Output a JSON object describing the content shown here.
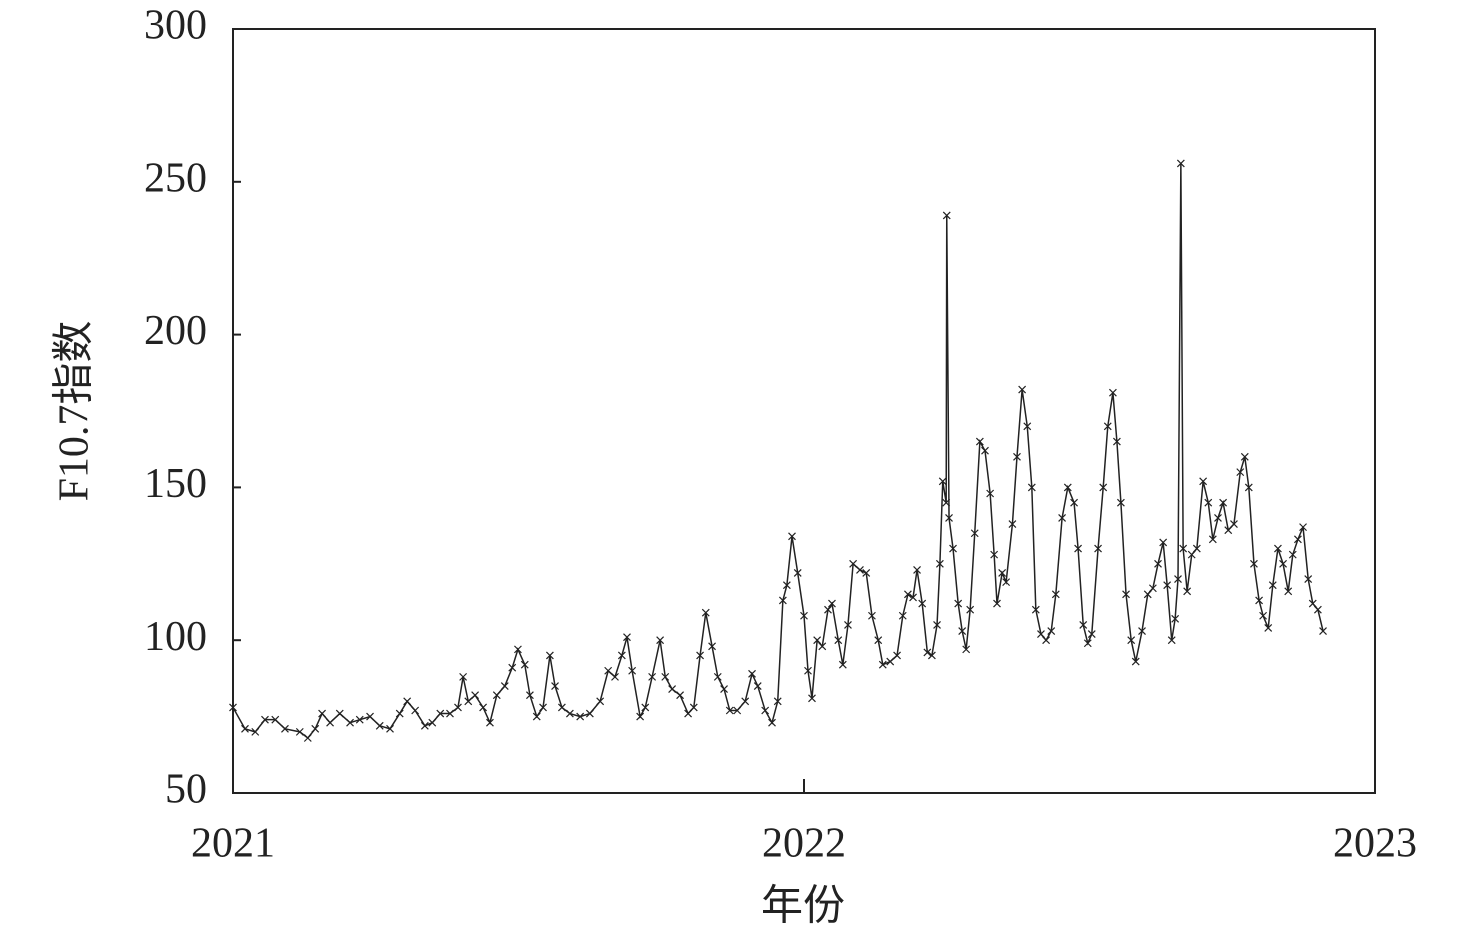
{
  "chart_data": {
    "type": "line",
    "xlabel": "年份",
    "ylabel": "F10.7指数",
    "xlim": [
      2021,
      2023
    ],
    "ylim": [
      50,
      300
    ],
    "xticks": [
      2021,
      2022,
      2023
    ],
    "yticks": [
      50,
      100,
      150,
      200,
      250,
      300
    ],
    "series": [
      {
        "color": "#222222",
        "x": [
          2021.0,
          2021.021,
          2021.039,
          2021.056,
          2021.074,
          2021.091,
          2021.117,
          2021.131,
          2021.144,
          2021.156,
          2021.17,
          2021.187,
          2021.205,
          2021.222,
          2021.24,
          2021.257,
          2021.275,
          2021.292,
          2021.305,
          2021.319,
          2021.336,
          2021.349,
          2021.363,
          2021.38,
          2021.394,
          2021.403,
          2021.412,
          2021.424,
          2021.438,
          2021.45,
          2021.462,
          2021.476,
          2021.489,
          2021.499,
          2021.511,
          2021.52,
          2021.532,
          2021.543,
          2021.555,
          2021.564,
          2021.576,
          2021.59,
          2021.608,
          2021.625,
          2021.643,
          2021.657,
          2021.669,
          2021.681,
          2021.69,
          2021.699,
          2021.713,
          2021.722,
          2021.734,
          2021.748,
          2021.757,
          2021.769,
          2021.783,
          2021.797,
          2021.807,
          2021.818,
          2021.828,
          2021.839,
          2021.849,
          2021.86,
          2021.87,
          2021.883,
          2021.897,
          2021.909,
          2021.919,
          2021.932,
          2021.944,
          2021.954,
          2021.963,
          2021.97,
          2021.979,
          2021.989,
          2022.0,
          2022.007,
          2022.014,
          2022.023,
          2022.032,
          2022.042,
          2022.049,
          2022.06,
          2022.068,
          2022.077,
          2022.086,
          2022.098,
          2022.109,
          2022.119,
          2022.13,
          2022.138,
          2022.151,
          2022.163,
          2022.173,
          2022.182,
          2022.191,
          2022.198,
          2022.207,
          2022.216,
          2022.224,
          2022.233,
          2022.238,
          2022.243,
          2022.249,
          2022.25,
          2022.254,
          2022.261,
          2022.27,
          2022.277,
          2022.284,
          2022.291,
          2022.299,
          2022.308,
          2022.317,
          2022.326,
          2022.333,
          2022.338,
          2022.347,
          2022.354,
          2022.365,
          2022.373,
          2022.382,
          2022.391,
          2022.399,
          2022.406,
          2022.415,
          2022.424,
          2022.433,
          2022.441,
          2022.452,
          2022.462,
          2022.473,
          2022.48,
          2022.489,
          2022.497,
          2022.504,
          2022.515,
          2022.524,
          2022.532,
          2022.541,
          2022.548,
          2022.555,
          2022.564,
          2022.573,
          2022.581,
          2022.592,
          2022.602,
          2022.611,
          2022.62,
          2022.629,
          2022.636,
          2022.644,
          2022.65,
          2022.655,
          2022.66,
          2022.664,
          2022.671,
          2022.679,
          2022.688,
          2022.699,
          2022.708,
          2022.716,
          2022.725,
          2022.734,
          2022.743,
          2022.753,
          2022.764,
          2022.772,
          2022.779,
          2022.788,
          2022.797,
          2022.804,
          2022.813,
          2022.821,
          2022.83,
          2022.839,
          2022.848,
          2022.856,
          2022.865,
          2022.874,
          2022.883,
          2022.891,
          2022.9,
          2022.909
        ],
        "values": [
          78,
          71,
          70,
          74,
          74,
          71,
          70,
          68,
          71,
          76,
          73,
          76,
          73,
          74,
          75,
          72,
          71,
          76,
          80,
          77,
          72,
          73,
          76,
          76,
          78,
          88,
          80,
          82,
          78,
          73,
          82,
          85,
          91,
          97,
          92,
          82,
          75,
          78,
          95,
          85,
          78,
          76,
          75,
          76,
          80,
          90,
          88,
          95,
          101,
          90,
          75,
          78,
          88,
          100,
          88,
          84,
          82,
          76,
          78,
          95,
          109,
          98,
          88,
          84,
          77,
          77,
          80,
          89,
          85,
          77,
          73,
          80,
          113,
          118,
          134,
          122,
          108,
          90,
          81,
          100,
          98,
          110,
          112,
          100,
          92,
          105,
          125,
          123,
          122,
          108,
          100,
          92,
          93,
          95,
          108,
          115,
          114,
          123,
          112,
          96,
          95,
          105,
          125,
          152,
          145,
          239,
          140,
          130,
          112,
          103,
          97,
          110,
          135,
          165,
          162,
          148,
          128,
          112,
          122,
          119,
          138,
          160,
          182,
          170,
          150,
          110,
          102,
          100,
          103,
          115,
          140,
          150,
          145,
          130,
          105,
          99,
          102,
          130,
          150,
          170,
          181,
          165,
          145,
          115,
          100,
          93,
          103,
          115,
          117,
          125,
          132,
          118,
          100,
          107,
          120,
          256,
          130,
          116,
          128,
          130,
          152,
          145,
          133,
          140,
          145,
          136,
          138,
          155,
          160,
          150,
          125,
          113,
          108,
          104,
          118,
          130,
          125,
          116,
          128,
          133,
          137,
          120,
          112,
          110,
          103
        ]
      }
    ]
  }
}
